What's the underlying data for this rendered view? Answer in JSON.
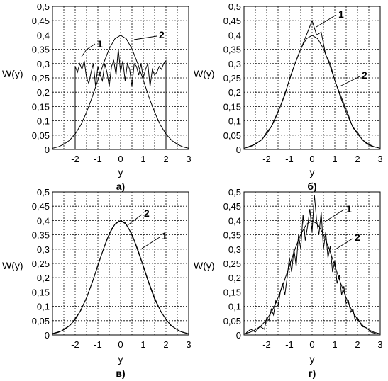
{
  "chart_data": [
    {
      "type": "line",
      "panel_label": "а)",
      "xlabel": "y",
      "ylabel": "W(y)",
      "xlim": [
        -3,
        3
      ],
      "ylim": [
        0,
        0.5
      ],
      "x_ticks": [
        -2,
        -1,
        0,
        1,
        2,
        3
      ],
      "y_ticks": [
        0,
        0.05,
        0.1,
        0.15,
        0.2,
        0.25,
        0.3,
        0.35,
        0.4,
        0.45,
        0.5
      ],
      "x_tick_labels": [
        "-2",
        "-1",
        "0",
        "1",
        "2",
        "3"
      ],
      "y_tick_labels": [
        "0",
        "0,05",
        "0,1",
        "0,15",
        "0,2",
        "0,25",
        "0,3",
        "0,35",
        "0,4",
        "0,45",
        "0,5"
      ],
      "grid": true,
      "series": [
        {
          "name": "1",
          "x": [
            -2.0,
            -2.0,
            -1.9,
            -1.8,
            -1.7,
            -1.6,
            -1.5,
            -1.4,
            -1.3,
            -1.2,
            -1.1,
            -1.0,
            -0.9,
            -0.8,
            -0.7,
            -0.6,
            -0.5,
            -0.4,
            -0.3,
            -0.2,
            -0.1,
            0.0,
            0.1,
            0.2,
            0.3,
            0.4,
            0.5,
            0.6,
            0.7,
            0.8,
            0.9,
            1.0,
            1.1,
            1.2,
            1.3,
            1.4,
            1.5,
            1.6,
            1.7,
            1.8,
            1.9,
            2.0,
            2.0
          ],
          "y": [
            0.0,
            0.29,
            0.27,
            0.3,
            0.28,
            0.31,
            0.25,
            0.23,
            0.27,
            0.3,
            0.22,
            0.29,
            0.26,
            0.24,
            0.3,
            0.27,
            0.22,
            0.29,
            0.31,
            0.26,
            0.35,
            0.27,
            0.31,
            0.24,
            0.3,
            0.28,
            0.22,
            0.3,
            0.29,
            0.26,
            0.3,
            0.25,
            0.28,
            0.3,
            0.22,
            0.28,
            0.26,
            0.27,
            0.29,
            0.28,
            0.3,
            0.31,
            0.0
          ]
        },
        {
          "name": "2",
          "x": [
            -3.0,
            -2.75,
            -2.5,
            -2.25,
            -2.0,
            -1.75,
            -1.5,
            -1.25,
            -1.0,
            -0.75,
            -0.5,
            -0.25,
            0.0,
            0.25,
            0.5,
            0.75,
            1.0,
            1.25,
            1.5,
            1.75,
            2.0,
            2.25,
            2.5,
            2.75,
            3.0
          ],
          "y": [
            0.004,
            0.009,
            0.018,
            0.032,
            0.054,
            0.086,
            0.13,
            0.183,
            0.242,
            0.301,
            0.352,
            0.387,
            0.399,
            0.387,
            0.352,
            0.301,
            0.242,
            0.183,
            0.13,
            0.086,
            0.054,
            0.032,
            0.018,
            0.009,
            0.004
          ]
        }
      ]
    },
    {
      "type": "line",
      "panel_label": "б)",
      "xlabel": "y",
      "ylabel": "W(y)",
      "xlim": [
        -3,
        3
      ],
      "ylim": [
        0,
        0.5
      ],
      "x_ticks": [
        -2,
        -1,
        0,
        1,
        2,
        3
      ],
      "y_ticks": [
        0,
        0.05,
        0.1,
        0.15,
        0.2,
        0.25,
        0.3,
        0.35,
        0.4,
        0.45,
        0.5
      ],
      "x_tick_labels": [
        "-2",
        "-1",
        "0",
        "1",
        "2",
        "3"
      ],
      "y_tick_labels": [
        "0",
        "0,05",
        "0,1",
        "0,15",
        "0,2",
        "0,25",
        "0,3",
        "0,35",
        "0,4",
        "0,45",
        "0,5"
      ],
      "grid": true,
      "series": [
        {
          "name": "1",
          "x": [
            -2.8,
            -2.6,
            -2.4,
            -2.2,
            -2.0,
            -1.8,
            -1.6,
            -1.4,
            -1.2,
            -1.0,
            -0.8,
            -0.6,
            -0.4,
            -0.2,
            0.0,
            0.2,
            0.4,
            0.6,
            0.8,
            1.0,
            1.2,
            1.4,
            1.6,
            1.8,
            2.0,
            2.2,
            2.4,
            2.6,
            2.8
          ],
          "y": [
            0.01,
            0.015,
            0.025,
            0.035,
            0.06,
            0.08,
            0.115,
            0.15,
            0.19,
            0.245,
            0.29,
            0.33,
            0.37,
            0.41,
            0.45,
            0.4,
            0.41,
            0.33,
            0.3,
            0.24,
            0.2,
            0.16,
            0.12,
            0.075,
            0.06,
            0.035,
            0.02,
            0.012,
            0.008
          ]
        },
        {
          "name": "2",
          "x": [
            -3.0,
            -2.75,
            -2.5,
            -2.25,
            -2.0,
            -1.75,
            -1.5,
            -1.25,
            -1.0,
            -0.75,
            -0.5,
            -0.25,
            0.0,
            0.25,
            0.5,
            0.75,
            1.0,
            1.25,
            1.5,
            1.75,
            2.0,
            2.25,
            2.5,
            2.75,
            3.0
          ],
          "y": [
            0.004,
            0.009,
            0.018,
            0.032,
            0.054,
            0.086,
            0.13,
            0.183,
            0.242,
            0.301,
            0.352,
            0.387,
            0.399,
            0.387,
            0.352,
            0.301,
            0.242,
            0.183,
            0.13,
            0.086,
            0.054,
            0.032,
            0.018,
            0.009,
            0.004
          ]
        }
      ]
    },
    {
      "type": "line",
      "panel_label": "в)",
      "xlabel": "y",
      "ylabel": "W(y)",
      "xlim": [
        -3,
        3
      ],
      "ylim": [
        0,
        0.5
      ],
      "x_ticks": [
        -2,
        -1,
        0,
        1,
        2,
        3
      ],
      "y_ticks": [
        0,
        0.05,
        0.1,
        0.15,
        0.2,
        0.25,
        0.3,
        0.35,
        0.4,
        0.45,
        0.5
      ],
      "x_tick_labels": [
        "-2",
        "-1",
        "0",
        "1",
        "2",
        "3"
      ],
      "y_tick_labels": [
        "0",
        "0,05",
        "0,1",
        "0,15",
        "0,2",
        "0,25",
        "0,3",
        "0,35",
        "0,4",
        "0,45",
        "0,5"
      ],
      "grid": true,
      "series": [
        {
          "name": "1",
          "x": [
            -3.0,
            -2.6,
            -2.2,
            -1.8,
            -1.5,
            -1.2,
            -1.0,
            -0.8,
            -0.6,
            -0.4,
            -0.2,
            0.0,
            0.2,
            0.4,
            0.6,
            0.8,
            1.0,
            1.2,
            1.5,
            1.8,
            2.2,
            2.6,
            3.0
          ],
          "y": [
            0.005,
            0.014,
            0.036,
            0.08,
            0.13,
            0.195,
            0.245,
            0.29,
            0.335,
            0.37,
            0.392,
            0.4,
            0.392,
            0.365,
            0.33,
            0.285,
            0.24,
            0.19,
            0.125,
            0.078,
            0.034,
            0.013,
            0.004
          ]
        },
        {
          "name": "2",
          "x": [
            -3.0,
            -2.75,
            -2.5,
            -2.25,
            -2.0,
            -1.75,
            -1.5,
            -1.25,
            -1.0,
            -0.75,
            -0.5,
            -0.25,
            0.0,
            0.25,
            0.5,
            0.75,
            1.0,
            1.25,
            1.5,
            1.75,
            2.0,
            2.25,
            2.5,
            2.75,
            3.0
          ],
          "y": [
            0.004,
            0.009,
            0.018,
            0.032,
            0.054,
            0.086,
            0.13,
            0.183,
            0.242,
            0.301,
            0.352,
            0.387,
            0.399,
            0.387,
            0.352,
            0.301,
            0.242,
            0.183,
            0.13,
            0.086,
            0.054,
            0.032,
            0.018,
            0.009,
            0.004
          ]
        }
      ]
    },
    {
      "type": "line",
      "panel_label": "г)",
      "xlabel": "y",
      "ylabel": "W(y)",
      "xlim": [
        -3,
        3
      ],
      "ylim": [
        0,
        0.5
      ],
      "x_ticks": [
        -2,
        -1,
        0,
        1,
        2,
        3
      ],
      "y_ticks": [
        0,
        0.05,
        0.1,
        0.15,
        0.2,
        0.25,
        0.3,
        0.35,
        0.4,
        0.45,
        0.5
      ],
      "x_tick_labels": [
        "-2",
        "-1",
        "0",
        "1",
        "2",
        "3"
      ],
      "y_tick_labels": [
        "0",
        "0,05",
        "0,1",
        "0,15",
        "0,2",
        "0,25",
        "0,3",
        "0,35",
        "0,4",
        "0,45",
        "0,5"
      ],
      "grid": true,
      "series": [
        {
          "name": "1",
          "x": [
            -2.9,
            -2.7,
            -2.5,
            -2.3,
            -2.1,
            -2.0,
            -1.9,
            -1.8,
            -1.7,
            -1.6,
            -1.5,
            -1.4,
            -1.3,
            -1.2,
            -1.1,
            -1.0,
            -0.9,
            -0.8,
            -0.7,
            -0.6,
            -0.5,
            -0.4,
            -0.3,
            -0.2,
            -0.1,
            0.0,
            0.1,
            0.2,
            0.3,
            0.4,
            0.5,
            0.6,
            0.7,
            0.8,
            0.9,
            1.0,
            1.1,
            1.2,
            1.3,
            1.4,
            1.5,
            1.6,
            1.7,
            1.8,
            1.9,
            2.0,
            2.2,
            2.4,
            2.6,
            2.8
          ],
          "y": [
            0.008,
            0.02,
            0.01,
            0.03,
            0.02,
            0.06,
            0.05,
            0.09,
            0.07,
            0.12,
            0.1,
            0.15,
            0.18,
            0.14,
            0.2,
            0.27,
            0.22,
            0.3,
            0.24,
            0.35,
            0.3,
            0.42,
            0.33,
            0.38,
            0.44,
            0.36,
            0.49,
            0.4,
            0.35,
            0.43,
            0.3,
            0.36,
            0.27,
            0.31,
            0.22,
            0.26,
            0.18,
            0.21,
            0.14,
            0.17,
            0.11,
            0.12,
            0.08,
            0.09,
            0.05,
            0.06,
            0.03,
            0.025,
            0.01,
            0.005
          ]
        },
        {
          "name": "2",
          "x": [
            -3.0,
            -2.75,
            -2.5,
            -2.25,
            -2.0,
            -1.75,
            -1.5,
            -1.25,
            -1.0,
            -0.75,
            -0.5,
            -0.25,
            0.0,
            0.25,
            0.5,
            0.75,
            1.0,
            1.25,
            1.5,
            1.75,
            2.0,
            2.25,
            2.5,
            2.75,
            3.0
          ],
          "y": [
            0.004,
            0.009,
            0.018,
            0.032,
            0.054,
            0.086,
            0.13,
            0.183,
            0.242,
            0.301,
            0.352,
            0.387,
            0.399,
            0.387,
            0.352,
            0.301,
            0.242,
            0.183,
            0.13,
            0.086,
            0.054,
            0.032,
            0.018,
            0.009,
            0.004
          ]
        }
      ]
    }
  ]
}
